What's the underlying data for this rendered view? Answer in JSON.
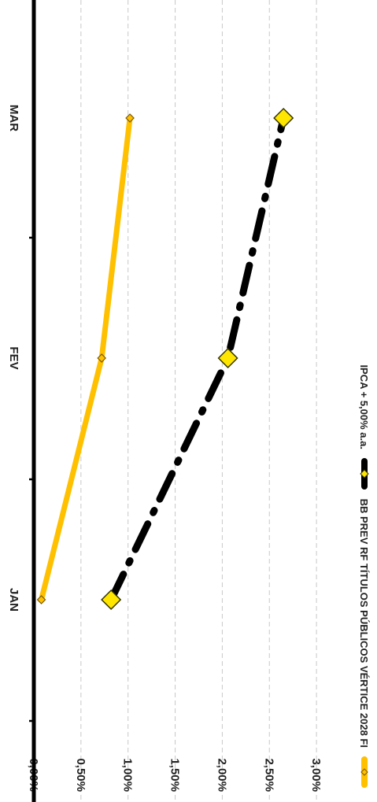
{
  "chart_data": {
    "type": "line",
    "orientation": "rotated 90° clockwise",
    "title": "",
    "xlabel": "",
    "ylabel": "",
    "categories": [
      "JAN",
      "FEV",
      "MAR"
    ],
    "ylim": [
      0,
      3
    ],
    "ytick_labels": [
      "0,00%",
      "0,50%",
      "1,00%",
      "1,50%",
      "2,00%",
      "2,50%",
      "3,00%"
    ],
    "grid": "horizontal dashed",
    "legend_position": "top",
    "series": [
      {
        "name": "BB PREV RF TÍTULOS PÚBLICOS VÉRTICE 2028 FI",
        "color": "#FFC000",
        "line": "solid",
        "marker": "diamond-small",
        "values": [
          0.08,
          0.72,
          1.02
        ]
      },
      {
        "name": "IPCA + 5,00% a.a.",
        "color": "#000000",
        "line": "dash-dot",
        "marker": "diamond-large-yellow",
        "values": [
          0.82,
          2.06,
          2.65
        ]
      }
    ]
  }
}
